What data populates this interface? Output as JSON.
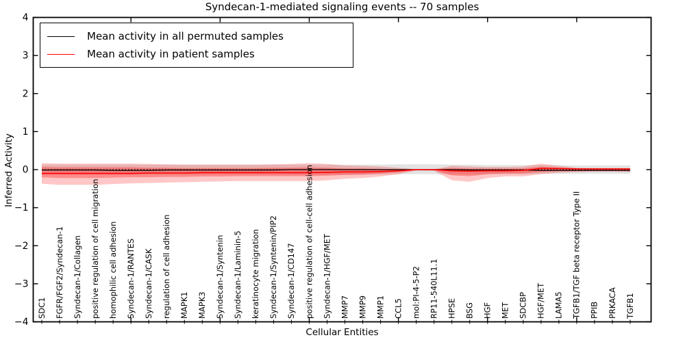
{
  "title": "Syndecan-1-mediated signaling events -- 70 samples",
  "legend": {
    "items": [
      {
        "label": "Mean activity in all permuted samples",
        "color": "#000000"
      },
      {
        "label": "Mean activity in patient samples",
        "color": "#ff0000"
      }
    ]
  },
  "chart_data": {
    "type": "line",
    "title": "Syndecan-1-mediated signaling events -- 70 samples",
    "xlabel": "Cellular Entities",
    "ylabel": "Inferred Activity",
    "ylim": [
      -4,
      4
    ],
    "yticks": [
      4,
      3,
      2,
      1,
      0,
      -1,
      -2,
      -3,
      -4
    ],
    "ytick_labels": [
      "4",
      "3",
      "2",
      "1",
      "0",
      "−1",
      "−2",
      "−3",
      "−4"
    ],
    "grid": false,
    "legend_position": "upper left",
    "categories": [
      "SDC1",
      "FGFR/FGF2/Syndecan-1",
      "Syndecan-1/Collagen",
      "positive regulation of cell migration",
      "homophilic cell adhesion",
      "Syndecan-1/RANTES",
      "Syndecan-1/CASK",
      "regulation of cell adhesion",
      "MAPK1",
      "MAPK3",
      "Syndecan-1/Syntenin",
      "Syndecan-1/Laminin-5",
      "keratinocyte migration",
      "Syndecan-1/Syntenin/PIP2",
      "Syndecan-1/CD147",
      "positive regulation of cell-cell adhesion",
      "Syndecan-1/HGF/MET",
      "MMP7",
      "MMP9",
      "MMP1",
      "CCL5",
      "mol:PI-4-5-P2",
      "RP11-540L11.1",
      "HPSE",
      "BSG",
      "HGF",
      "MET",
      "SDCBP",
      "HGF/MET",
      "LAMA5",
      "TGFB1/TGF beta receptor Type II",
      "PPIB",
      "PRKACA",
      "TGFB1"
    ],
    "series": [
      {
        "name": "Mean activity in all permuted samples",
        "color": "#000000",
        "values": [
          -0.01,
          -0.01,
          -0.01,
          -0.01,
          -0.02,
          -0.02,
          -0.02,
          -0.01,
          -0.01,
          -0.01,
          -0.01,
          -0.01,
          -0.01,
          -0.01,
          0.0,
          0.0,
          0.0,
          0.0,
          0.0,
          0.0,
          0.0,
          0.0,
          0.0,
          0.0,
          -0.01,
          -0.01,
          -0.01,
          -0.01,
          -0.02,
          -0.02,
          -0.02,
          -0.02,
          -0.02,
          -0.02
        ]
      },
      {
        "name": "Mean activity in patient samples",
        "color": "#ff0000",
        "values": [
          -0.1,
          -0.1,
          -0.1,
          -0.1,
          -0.1,
          -0.1,
          -0.09,
          -0.09,
          -0.09,
          -0.08,
          -0.08,
          -0.08,
          -0.08,
          -0.08,
          -0.08,
          -0.08,
          -0.07,
          -0.06,
          -0.06,
          -0.05,
          -0.03,
          0.0,
          0.0,
          -0.03,
          -0.04,
          -0.03,
          -0.03,
          -0.02,
          0.03,
          0.03,
          0.02,
          0.02,
          0.02,
          0.02
        ]
      }
    ],
    "bands": [
      {
        "name": "permuted-samples-std-band",
        "color": "#999999",
        "opacity": 0.28,
        "upper": [
          0.13,
          0.13,
          0.13,
          0.13,
          0.13,
          0.13,
          0.13,
          0.13,
          0.13,
          0.13,
          0.13,
          0.13,
          0.13,
          0.13,
          0.13,
          0.13,
          0.13,
          0.13,
          0.13,
          0.13,
          0.14,
          0.14,
          0.14,
          0.13,
          0.13,
          0.12,
          0.12,
          0.12,
          0.12,
          0.12,
          0.11,
          0.11,
          0.11,
          0.11
        ],
        "lower": [
          -0.13,
          -0.13,
          -0.13,
          -0.13,
          -0.13,
          -0.13,
          -0.13,
          -0.13,
          -0.13,
          -0.13,
          -0.13,
          -0.13,
          -0.13,
          -0.13,
          -0.13,
          -0.13,
          -0.13,
          -0.13,
          -0.13,
          -0.13,
          -0.12,
          -0.12,
          -0.12,
          -0.12,
          -0.12,
          -0.12,
          -0.12,
          -0.12,
          -0.11,
          -0.11,
          -0.11,
          -0.11,
          -0.11,
          -0.11
        ]
      },
      {
        "name": "patient-samples-std-band-outer",
        "color": "#ff0000",
        "opacity": 0.22,
        "upper": [
          0.17,
          0.16,
          0.16,
          0.16,
          0.16,
          0.16,
          0.15,
          0.14,
          0.13,
          0.13,
          0.13,
          0.13,
          0.13,
          0.14,
          0.15,
          0.17,
          0.15,
          0.11,
          0.1,
          0.08,
          0.05,
          0.01,
          0.01,
          0.1,
          0.08,
          0.07,
          0.07,
          0.08,
          0.16,
          0.1,
          0.05,
          0.04,
          0.04,
          0.04
        ],
        "lower": [
          -0.37,
          -0.4,
          -0.4,
          -0.4,
          -0.38,
          -0.36,
          -0.35,
          -0.34,
          -0.33,
          -0.32,
          -0.31,
          -0.3,
          -0.3,
          -0.3,
          -0.3,
          -0.3,
          -0.28,
          -0.24,
          -0.22,
          -0.18,
          -0.12,
          -0.02,
          -0.03,
          -0.28,
          -0.32,
          -0.22,
          -0.18,
          -0.18,
          -0.12,
          -0.08,
          -0.06,
          -0.05,
          -0.05,
          -0.06
        ]
      },
      {
        "name": "patient-samples-std-band-inner",
        "color": "#ff0000",
        "opacity": 0.3,
        "upper": [
          0.07,
          0.06,
          0.06,
          0.06,
          0.06,
          0.06,
          0.05,
          0.05,
          0.04,
          0.04,
          0.04,
          0.04,
          0.04,
          0.05,
          0.05,
          0.06,
          0.05,
          0.03,
          0.03,
          0.02,
          0.01,
          0.01,
          0.01,
          0.04,
          0.03,
          0.03,
          0.03,
          0.03,
          0.08,
          0.05,
          0.03,
          0.02,
          0.02,
          0.02
        ],
        "lower": [
          -0.2,
          -0.22,
          -0.22,
          -0.22,
          -0.21,
          -0.2,
          -0.2,
          -0.19,
          -0.19,
          -0.18,
          -0.18,
          -0.17,
          -0.17,
          -0.17,
          -0.17,
          -0.17,
          -0.16,
          -0.14,
          -0.13,
          -0.1,
          -0.07,
          -0.02,
          -0.02,
          -0.15,
          -0.17,
          -0.12,
          -0.1,
          -0.1,
          -0.06,
          -0.04,
          -0.04,
          -0.04,
          -0.04,
          -0.04
        ]
      }
    ],
    "zero_line": {
      "y": 0,
      "style": "dotted",
      "color": "#000000"
    }
  }
}
